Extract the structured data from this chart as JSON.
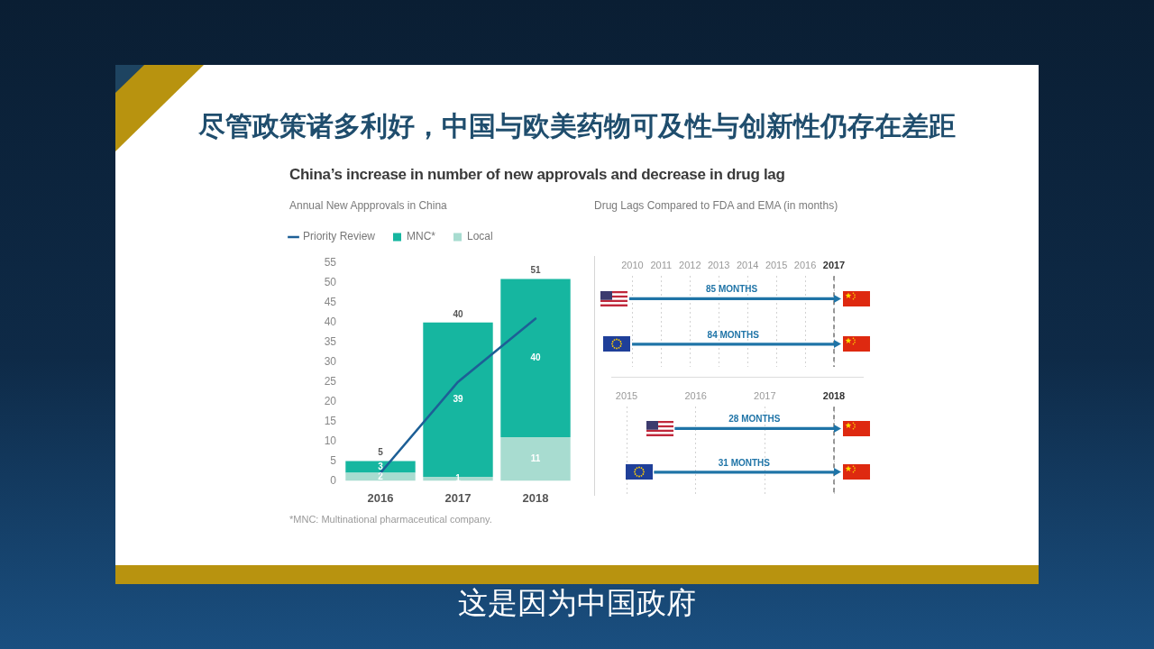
{
  "chart_data": [
    {
      "type": "bar",
      "title": "China’s increase in number of new approvals and decrease in drug lag",
      "subtitle": "Annual New Appprovals in China",
      "categories": [
        "2016",
        "2017",
        "2018"
      ],
      "stacked": true,
      "series": [
        {
          "name": "Local",
          "color": "#a8dcd0",
          "values": [
            2,
            1,
            11
          ],
          "value_labels": [
            "2",
            "1",
            "11"
          ]
        },
        {
          "name": "MNC*",
          "color": "#16b6a0",
          "values": [
            3,
            39,
            40
          ],
          "value_labels": [
            "3",
            "39",
            "40"
          ]
        },
        {
          "name": "Priority Review",
          "type": "line",
          "color": "#1d5f96",
          "values": [
            2,
            25,
            41
          ]
        }
      ],
      "totals": [
        "5",
        "40",
        "51"
      ],
      "ylim": [
        0,
        55
      ],
      "yticks": [
        0,
        5,
        10,
        15,
        20,
        25,
        30,
        35,
        40,
        45,
        50,
        55
      ],
      "legend": "top left",
      "marker": "none",
      "line_style": "solid",
      "annotations": [
        "尽管政策诸多利好，中国与欧美药物可及性与创新性仍存在差距",
        "*MNC: Multinational pharmaceutical company.",
        "这是因为中国政府"
      ]
    },
    {
      "type": "bar",
      "orientation": "horizontal",
      "title": "Drug Lags Compared to FDA and EMA (in months)",
      "categories": [
        null,
        null
      ],
      "base": [
        2009.9,
        2010
      ],
      "values": [
        7.1,
        7
      ],
      "color": "#1f74a7",
      "xlim": [
        2009.8,
        2017
      ],
      "xticks": [
        2010,
        2011,
        2012,
        2013,
        2014,
        2015,
        2016,
        2017
      ],
      "grid": "x",
      "ref_lines": [
        {
          "axis": "x",
          "value": 2017,
          "color": "#555555",
          "line_style": "dashed"
        }
      ],
      "annotations": [
        "85 MONTHS",
        "84 MONTHS"
      ]
    },
    {
      "type": "bar",
      "orientation": "horizontal",
      "categories": [
        null,
        null
      ],
      "base": [
        2015.7,
        2015.4
      ],
      "values": [
        2.3,
        2.6
      ],
      "color": "#1f74a7",
      "xlim": [
        2015,
        2018
      ],
      "xticks": [
        2015,
        2016,
        2017,
        2018
      ],
      "grid": "x",
      "ref_lines": [
        {
          "axis": "x",
          "value": 2018,
          "color": "#555555",
          "line_style": "dashed"
        }
      ],
      "annotations": [
        "28 MONTHS",
        "31 MONTHS"
      ]
    }
  ]
}
